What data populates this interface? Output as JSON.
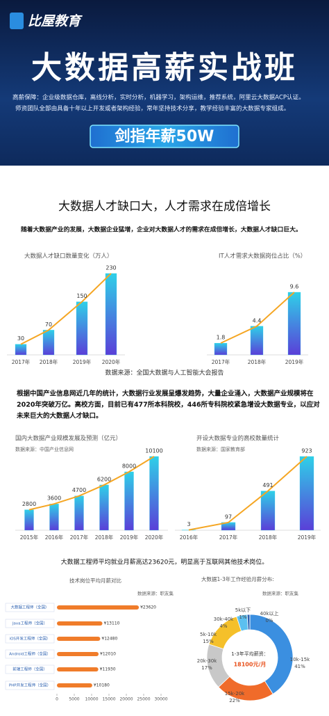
{
  "header": {
    "logo": "比屋教育",
    "title": "大数据高薪实战班",
    "lines": [
      "高薪保障：企业级数据仓库，离线分析，实时分析，机器学习，架构运维，推荐系统，阿里云大数据ACP认证。",
      "师资团队全部由具备十年以上开发或者架构经验，常年坚持技术分享，教学经验丰富的大数据专家组成。"
    ],
    "badge": "剑指年薪50W"
  },
  "intro": {
    "heading": "大数据人才缺口大，人才需求在成倍增长",
    "text": "随着大数据产业的发展，大数据企业猛增，企业对大数据人才的需求在成倍增长，大数据人才缺口巨大。"
  },
  "shared_source": "数据来源：全国大数据与人工智能大会报告",
  "paragraph": {
    "lines": [
      "根据中国产业信息网近几年的统计，大数据行业发展呈爆发趋势，大量企业涌入，大数据产业规模将在",
      "2020年突破万亿。高校方面，目前已有477所本科院校，446所专科院校紧急增设大数据专业，以应对",
      "未来巨大的大数据人才缺口。"
    ]
  },
  "salary_note": "大数据工程师平均就业月薪高达23620元，明显高于互联网其他技术岗位。",
  "chart_data": [
    {
      "type": "bar_line",
      "title": "大数据人才缺口数量变化（万人）",
      "categories": [
        "2017年",
        "2018年",
        "2019年",
        "2020年"
      ],
      "values": [
        30,
        70,
        150,
        230
      ],
      "bar_color": "#2fd0e8",
      "line_color": "#f5a623"
    },
    {
      "type": "bar_line",
      "title": "IT人才需求大数据岗位占比（%）",
      "categories": [
        "2017年",
        "2018年",
        "2019年"
      ],
      "values": [
        1.8,
        4.4,
        9.6
      ],
      "bar_color": "#2fd0e8",
      "line_color": "#f5a623"
    },
    {
      "type": "bar_line",
      "title": "国内大数据产业规模发展及预测（亿元）",
      "source": "数据来源：中国产业信息网",
      "categories": [
        "2015年",
        "2016年",
        "2017年",
        "2018年",
        "2019年",
        "2020年"
      ],
      "values": [
        2800,
        3600,
        4700,
        6200,
        8000,
        10100
      ],
      "bar_color": "#2fd0e8",
      "line_color": "#f5a623"
    },
    {
      "type": "bar_line",
      "title": "开设大数据专业的高校数量统计",
      "source": "数据来源：国家教育部",
      "categories": [
        "2016年",
        "2017年",
        "2018年",
        "2019年"
      ],
      "values": [
        3,
        97,
        491,
        923
      ],
      "bar_color": "#2fd0e8",
      "line_color": "#f5a623"
    },
    {
      "type": "hbar",
      "title": "技术岗位平均月薪对比",
      "source": "数据来源：职友集",
      "categories": [
        "大数据工程师（全国）",
        "Java工程师（全国）",
        "iOS开发工程师（全国）",
        "Android工程师（全国）",
        "前端工程师（全国）",
        "PHP开发工程师（全国）"
      ],
      "values": [
        23620,
        13110,
        12480,
        12010,
        11930,
        10180
      ],
      "value_labels": [
        "¥23620",
        "¥13110",
        "¥12480",
        "¥12010",
        "¥11930",
        "¥10180"
      ],
      "color": "#f07c2a",
      "xlim": [
        0,
        30000
      ],
      "xticks": [
        0,
        5000,
        10000,
        15000,
        20000,
        25000,
        30000
      ]
    },
    {
      "type": "donut",
      "title": "大数据1-3年工作经验月薪分布:",
      "source": "数据来源：职友集",
      "categories": [
        "10k-15k",
        "15k-20k",
        "20k-30k",
        "5k-10k",
        "30k-40k",
        "5k以下",
        "40k以上"
      ],
      "values": [
        41,
        22,
        17,
        15,
        4,
        1,
        0
      ],
      "value_labels": [
        "41%",
        "22%",
        "17%",
        "15%",
        "4%",
        "1%",
        "0%"
      ],
      "colors": [
        "#3b8fe0",
        "#f06b2a",
        "#c8c8c8",
        "#f5c02a",
        "#5cc0f0",
        "#2a5fb0",
        "#4cbf6a"
      ],
      "center_label": "1-3年平均薪资：",
      "center_value": "18100元/月"
    }
  ]
}
